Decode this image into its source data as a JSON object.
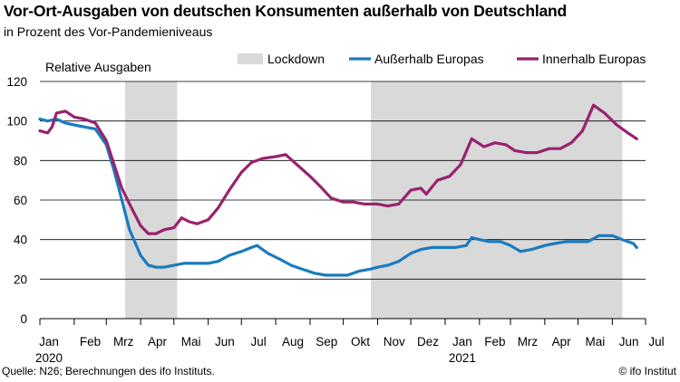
{
  "title": "Vor-Ort-Ausgaben von deutschen Konsumenten außerhalb von Deutschland",
  "subtitle": "in Prozent des Vor-Pandemieniveaus",
  "source": "Quelle: N26; Berechnungen des ifo Instituts.",
  "copyright": "© ifo Institut",
  "chart_data": {
    "type": "line",
    "ylabel": "Relative Ausgaben",
    "ylim": [
      0,
      120
    ],
    "yticks": [
      0,
      20,
      40,
      60,
      80,
      100,
      120
    ],
    "grid": "horizontal",
    "legend_position": "top-right",
    "x_range": [
      "2020-01-01",
      "2021-07-01"
    ],
    "x_ticks": [
      {
        "date": "2020-01-01",
        "label": "Jan",
        "year": "2020"
      },
      {
        "date": "2020-02-01",
        "label": "Feb"
      },
      {
        "date": "2020-03-01",
        "label": "Mrz"
      },
      {
        "date": "2020-04-01",
        "label": "Apr"
      },
      {
        "date": "2020-05-01",
        "label": "Mai"
      },
      {
        "date": "2020-06-01",
        "label": "Jun"
      },
      {
        "date": "2020-07-01",
        "label": "Jul"
      },
      {
        "date": "2020-08-01",
        "label": "Aug"
      },
      {
        "date": "2020-09-01",
        "label": "Sep"
      },
      {
        "date": "2020-10-01",
        "label": "Okt"
      },
      {
        "date": "2020-11-01",
        "label": "Nov"
      },
      {
        "date": "2020-12-01",
        "label": "Dez"
      },
      {
        "date": "2021-01-01",
        "label": "Jan",
        "year": "2021"
      },
      {
        "date": "2021-02-01",
        "label": "Feb"
      },
      {
        "date": "2021-03-01",
        "label": "Mrz"
      },
      {
        "date": "2021-04-01",
        "label": "Apr"
      },
      {
        "date": "2021-05-01",
        "label": "Mai"
      },
      {
        "date": "2021-06-01",
        "label": "Jun"
      },
      {
        "date": "2021-07-01",
        "label": "Jul"
      }
    ],
    "shaded_periods": [
      {
        "name": "Lockdown",
        "start": "2020-03-18",
        "end": "2020-05-04",
        "color": "#d9d9d9"
      },
      {
        "name": "Lockdown",
        "start": "2020-10-26",
        "end": "2021-06-10",
        "color": "#d9d9d9"
      }
    ],
    "series": [
      {
        "name": "Außerhalb Europas",
        "color": "#1a7bbf",
        "points": [
          [
            "2020-01-01",
            101
          ],
          [
            "2020-01-08",
            100
          ],
          [
            "2020-01-16",
            101
          ],
          [
            "2020-01-24",
            99
          ],
          [
            "2020-02-01",
            98
          ],
          [
            "2020-02-10",
            97
          ],
          [
            "2020-02-20",
            96
          ],
          [
            "2020-03-01",
            88
          ],
          [
            "2020-03-08",
            75
          ],
          [
            "2020-03-15",
            60
          ],
          [
            "2020-03-22",
            45
          ],
          [
            "2020-04-01",
            32
          ],
          [
            "2020-04-08",
            27
          ],
          [
            "2020-04-15",
            26
          ],
          [
            "2020-04-22",
            26
          ],
          [
            "2020-05-01",
            27
          ],
          [
            "2020-05-10",
            28
          ],
          [
            "2020-05-20",
            28
          ],
          [
            "2020-06-01",
            28
          ],
          [
            "2020-06-10",
            29
          ],
          [
            "2020-06-20",
            32
          ],
          [
            "2020-07-01",
            34
          ],
          [
            "2020-07-10",
            36
          ],
          [
            "2020-07-15",
            37
          ],
          [
            "2020-07-25",
            33
          ],
          [
            "2020-08-05",
            30
          ],
          [
            "2020-08-15",
            27
          ],
          [
            "2020-08-25",
            25
          ],
          [
            "2020-09-05",
            23
          ],
          [
            "2020-09-15",
            22
          ],
          [
            "2020-09-25",
            22
          ],
          [
            "2020-10-05",
            22
          ],
          [
            "2020-10-15",
            24
          ],
          [
            "2020-10-25",
            25
          ],
          [
            "2020-11-01",
            26
          ],
          [
            "2020-11-10",
            27
          ],
          [
            "2020-11-20",
            29
          ],
          [
            "2020-12-01",
            33
          ],
          [
            "2020-12-10",
            35
          ],
          [
            "2020-12-20",
            36
          ],
          [
            "2021-01-01",
            36
          ],
          [
            "2021-01-10",
            36
          ],
          [
            "2021-01-20",
            37
          ],
          [
            "2021-01-25",
            41
          ],
          [
            "2021-02-01",
            40
          ],
          [
            "2021-02-10",
            39
          ],
          [
            "2021-02-20",
            39
          ],
          [
            "2021-03-01",
            37
          ],
          [
            "2021-03-10",
            34
          ],
          [
            "2021-03-20",
            35
          ],
          [
            "2021-04-01",
            37
          ],
          [
            "2021-04-10",
            38
          ],
          [
            "2021-04-20",
            39
          ],
          [
            "2021-05-01",
            39
          ],
          [
            "2021-05-10",
            39
          ],
          [
            "2021-05-20",
            42
          ],
          [
            "2021-06-01",
            42
          ],
          [
            "2021-06-10",
            40
          ],
          [
            "2021-06-15",
            39
          ],
          [
            "2021-06-20",
            38
          ],
          [
            "2021-06-23",
            36
          ]
        ]
      },
      {
        "name": "Innerhalb Europas",
        "color": "#99226e",
        "points": [
          [
            "2020-01-01",
            95
          ],
          [
            "2020-01-08",
            94
          ],
          [
            "2020-01-12",
            97
          ],
          [
            "2020-01-16",
            104
          ],
          [
            "2020-01-24",
            105
          ],
          [
            "2020-02-01",
            102
          ],
          [
            "2020-02-10",
            101
          ],
          [
            "2020-02-20",
            99
          ],
          [
            "2020-03-01",
            90
          ],
          [
            "2020-03-08",
            78
          ],
          [
            "2020-03-15",
            66
          ],
          [
            "2020-03-22",
            58
          ],
          [
            "2020-04-01",
            47
          ],
          [
            "2020-04-08",
            43
          ],
          [
            "2020-04-15",
            43
          ],
          [
            "2020-04-22",
            45
          ],
          [
            "2020-05-01",
            46
          ],
          [
            "2020-05-08",
            51
          ],
          [
            "2020-05-15",
            49
          ],
          [
            "2020-05-22",
            48
          ],
          [
            "2020-06-01",
            50
          ],
          [
            "2020-06-10",
            56
          ],
          [
            "2020-06-20",
            65
          ],
          [
            "2020-07-01",
            74
          ],
          [
            "2020-07-10",
            79
          ],
          [
            "2020-07-20",
            81
          ],
          [
            "2020-08-01",
            82
          ],
          [
            "2020-08-10",
            83
          ],
          [
            "2020-08-20",
            78
          ],
          [
            "2020-09-01",
            72
          ],
          [
            "2020-09-10",
            67
          ],
          [
            "2020-09-20",
            61
          ],
          [
            "2020-10-01",
            59
          ],
          [
            "2020-10-10",
            59
          ],
          [
            "2020-10-20",
            58
          ],
          [
            "2020-11-01",
            58
          ],
          [
            "2020-11-10",
            57
          ],
          [
            "2020-11-20",
            58
          ],
          [
            "2020-12-01",
            65
          ],
          [
            "2020-12-10",
            66
          ],
          [
            "2020-12-15",
            63
          ],
          [
            "2020-12-25",
            70
          ],
          [
            "2021-01-05",
            72
          ],
          [
            "2021-01-15",
            78
          ],
          [
            "2021-01-25",
            91
          ],
          [
            "2021-02-05",
            87
          ],
          [
            "2021-02-15",
            89
          ],
          [
            "2021-02-25",
            88
          ],
          [
            "2021-03-05",
            85
          ],
          [
            "2021-03-15",
            84
          ],
          [
            "2021-03-25",
            84
          ],
          [
            "2021-04-05",
            86
          ],
          [
            "2021-04-15",
            86
          ],
          [
            "2021-04-25",
            89
          ],
          [
            "2021-05-05",
            95
          ],
          [
            "2021-05-15",
            108
          ],
          [
            "2021-05-25",
            104
          ],
          [
            "2021-06-05",
            98
          ],
          [
            "2021-06-15",
            94
          ],
          [
            "2021-06-23",
            91
          ]
        ]
      }
    ]
  }
}
